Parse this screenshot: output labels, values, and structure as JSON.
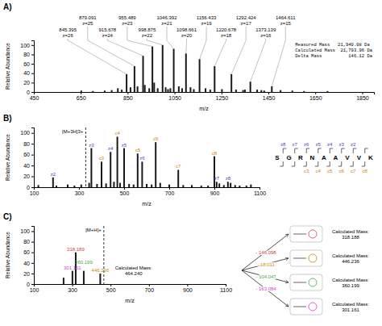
{
  "chart_data": [
    {
      "type": "bar",
      "title": "A)",
      "x_label": "m/z",
      "y_label": "Relative Abundance",
      "color": "#1a1a1a",
      "x": [
        808,
        825,
        862,
        892,
        923,
        942,
        963,
        978,
        1012,
        1022,
        1032,
        1068,
        1082,
        1118,
        1132,
        1182,
        1202,
        1252,
        1312,
        1342,
        1402,
        1432,
        1502,
        1552,
        1602,
        652,
        702,
        752,
        782,
        1702,
        1350,
        1420,
        845.395,
        879.091,
        915.678,
        955.489,
        998.875,
        1046.392,
        1098.661,
        1156.433,
        1220.678,
        1292.424,
        1373.139,
        1464.611
      ],
      "values": [
        8,
        5,
        10,
        12,
        15,
        8,
        20,
        8,
        10,
        6,
        8,
        12,
        8,
        10,
        6,
        8,
        5,
        6,
        5,
        4,
        5,
        3,
        4,
        3,
        2,
        3,
        2,
        3,
        4,
        2,
        5,
        4,
        38,
        55,
        77,
        97,
        100,
        92,
        82,
        70,
        55,
        38,
        22,
        12
      ],
      "labels": [
        null,
        null,
        null,
        null,
        null,
        null,
        null,
        null,
        null,
        null,
        null,
        null,
        null,
        null,
        null,
        null,
        null,
        null,
        null,
        null,
        null,
        null,
        null,
        null,
        null,
        null,
        null,
        null,
        null,
        null,
        null,
        null,
        "845.395\nz=26",
        "879.091\nz=25",
        "915.678\nz=24",
        "955.489\nz=23",
        "998.875\nz=22",
        "1046.392\nz=21",
        "1098.661\nz=20",
        "1156.433\nz=19",
        "1220.678\nz=18",
        "1292.424\nz=17",
        "1373.139\nz=16",
        "1464.611\nz=15"
      ],
      "xlim": [
        450,
        1900
      ],
      "ylim": [
        0,
        110
      ],
      "xticks": [
        450,
        650,
        850,
        1050,
        1250,
        1450,
        1650,
        1850
      ],
      "yticks": [
        0,
        20,
        40,
        60,
        80,
        100
      ],
      "annotations": [
        "Measured Mass   21,940.08 Da",
        "Calculated Mass  21,793.96 Da",
        "Delta Mass          146.12 Da"
      ]
    },
    {
      "type": "bar",
      "title": "B)",
      "x_label": "m/z",
      "y_label": "Relative Abundance",
      "color": "#1a1a1a",
      "x": [
        120,
        200,
        250,
        280,
        310,
        345,
        380,
        420,
        455,
        482,
        522,
        542,
        600,
        622,
        660,
        700,
        762,
        800,
        842,
        872,
        922,
        942,
        972,
        992,
        1012,
        1042,
        1062,
        400,
        470,
        560,
        640,
        740,
        900,
        185,
        355,
        440,
        500,
        580,
        910,
        960
      ],
      "values": [
        4,
        3,
        5,
        3,
        5,
        8,
        6,
        7,
        10,
        8,
        6,
        5,
        6,
        5,
        8,
        5,
        4,
        4,
        3,
        3,
        7,
        4,
        8,
        4,
        3,
        3,
        5,
        47,
        93,
        62,
        83,
        32,
        57,
        18,
        72,
        65,
        72,
        47,
        10,
        10
      ],
      "labels": [
        null,
        null,
        null,
        null,
        null,
        null,
        null,
        null,
        null,
        null,
        null,
        null,
        null,
        null,
        null,
        null,
        null,
        null,
        null,
        null,
        null,
        null,
        null,
        null,
        null,
        null,
        null,
        {
          "text": "c3",
          "color": "#cc8800"
        },
        {
          "text": "c4",
          "color": "#cc8800"
        },
        {
          "text": "c5",
          "color": "#cc8800"
        },
        {
          "text": "c6",
          "color": "#cc8800"
        },
        {
          "text": "c7",
          "color": "#cc8800"
        },
        {
          "text": "c8",
          "color": "#cc8800"
        },
        {
          "text": "z2",
          "color": "#4444cc"
        },
        {
          "text": "z3",
          "color": "#4444cc"
        },
        {
          "text": "z4",
          "color": "#4444cc"
        },
        {
          "text": "z5",
          "color": "#4444cc"
        },
        {
          "text": "z6",
          "color": "#4444cc"
        },
        {
          "text": "z7",
          "color": "#4444cc"
        },
        {
          "text": "z8",
          "color": "#4444cc"
        }
      ],
      "xlim": [
        100,
        1100
      ],
      "ylim": [
        0,
        110
      ],
      "xticks": [
        100,
        300,
        500,
        700,
        900,
        1100
      ],
      "yticks": [
        0,
        20,
        40,
        60,
        80,
        100
      ],
      "vline": {
        "x": 330,
        "label": "[M+3H]3+"
      },
      "sequence": [
        "S",
        "G",
        "R",
        "N",
        "A",
        "A",
        "V",
        "V",
        "K"
      ],
      "sequence_c": [
        {
          "name": "c3",
          "site": 3,
          "color": "#cc8800"
        },
        {
          "name": "c4",
          "site": 4,
          "color": "#cc8800"
        },
        {
          "name": "c5",
          "site": 5,
          "color": "#cc8800"
        },
        {
          "name": "c6",
          "site": 6,
          "color": "#cc8800"
        },
        {
          "name": "c7",
          "site": 7,
          "color": "#cc8800"
        },
        {
          "name": "c8",
          "site": 8,
          "color": "#cc8800"
        }
      ],
      "sequence_z": [
        {
          "name": "z2",
          "site": 7,
          "color": "#4444cc"
        },
        {
          "name": "z3",
          "site": 6,
          "color": "#4444cc"
        },
        {
          "name": "z4",
          "site": 5,
          "color": "#4444cc"
        },
        {
          "name": "z5",
          "site": 4,
          "color": "#4444cc"
        },
        {
          "name": "z6",
          "site": 3,
          "color": "#4444cc"
        },
        {
          "name": "z7",
          "site": 2,
          "color": "#4444cc"
        },
        {
          "name": "z8",
          "site": 1,
          "color": "#4444cc"
        }
      ]
    },
    {
      "type": "bar",
      "title": "C)",
      "x_label": "m/z",
      "y_label": "Relative Abundance",
      "color": "#1a1a1a",
      "x": [
        255,
        301.161,
        318.189,
        360.199,
        446.236
      ],
      "values": [
        12,
        25,
        60,
        25,
        20
      ],
      "labels": [
        null,
        {
          "text": "301.161",
          "color": "#cc44cc"
        },
        {
          "text": "318.189",
          "color": "#cc4444"
        },
        {
          "text": "360.199",
          "color": "#44aa44"
        },
        {
          "text": "446.236",
          "color": "#cc8800"
        }
      ],
      "xlim": [
        100,
        1100
      ],
      "ylim": [
        0,
        110
      ],
      "xticks": [
        100,
        300,
        500,
        700,
        900,
        1100
      ],
      "yticks": [
        0,
        20,
        40,
        60,
        80,
        100
      ],
      "vline": {
        "x": 465,
        "label": "[M+H]+"
      },
      "annotations": [
        "Calculated Mass:\n464.240"
      ],
      "fragments": [
        {
          "text": "- 146.098",
          "color": "#cc4444",
          "result": "Calculated Mass:\n318.188"
        },
        {
          "text": "- 18.011",
          "color": "#cc8800",
          "result": "Calculated Mass:\n446.236"
        },
        {
          "text": "- 104.047",
          "color": "#44aa44",
          "result": "Calculated Mass:\n360.199"
        },
        {
          "text": "- 163.084",
          "color": "#cc44cc",
          "result": "Calculated Mass:\n301.161"
        }
      ]
    }
  ]
}
